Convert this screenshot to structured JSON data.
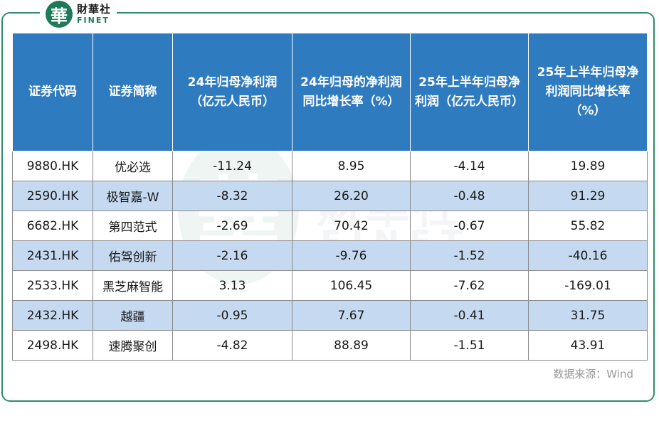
{
  "brand": {
    "mark": "華",
    "name_cn": "財華社",
    "name_en": "FINET"
  },
  "table": {
    "headers": [
      "证券代码",
      "证券简称",
      "24年归母净利润（亿元人民币）",
      "24年归母的净利润同比增长率（%）",
      "25年上半年归母净利润（亿元人民币）",
      "25年上半年归母净利润同比增长率（%）"
    ],
    "rows": [
      [
        "9880.HK",
        "优必选",
        "-11.24",
        "8.95",
        "-4.14",
        "19.89"
      ],
      [
        "2590.HK",
        "极智嘉-W",
        "-8.32",
        "26.20",
        "-0.48",
        "91.29"
      ],
      [
        "6682.HK",
        "第四范式",
        "-2.69",
        "70.42",
        "-0.67",
        "55.82"
      ],
      [
        "2431.HK",
        "佑驾创新",
        "-2.16",
        "-9.76",
        "-1.52",
        "-40.16"
      ],
      [
        "2533.HK",
        "黑芝麻智能",
        "3.13",
        "106.45",
        "-7.62",
        "-169.01"
      ],
      [
        "2432.HK",
        "越疆",
        "-0.95",
        "7.67",
        "-0.41",
        "31.75"
      ],
      [
        "2498.HK",
        "速腾聚创",
        "-4.82",
        "88.89",
        "-1.51",
        "43.91"
      ]
    ]
  },
  "source": "数据来源：Wind",
  "colors": {
    "header_bg": "#2f7bc0",
    "row_alt_bg": "#c5d9f0",
    "frame": "#2e8b6b"
  }
}
